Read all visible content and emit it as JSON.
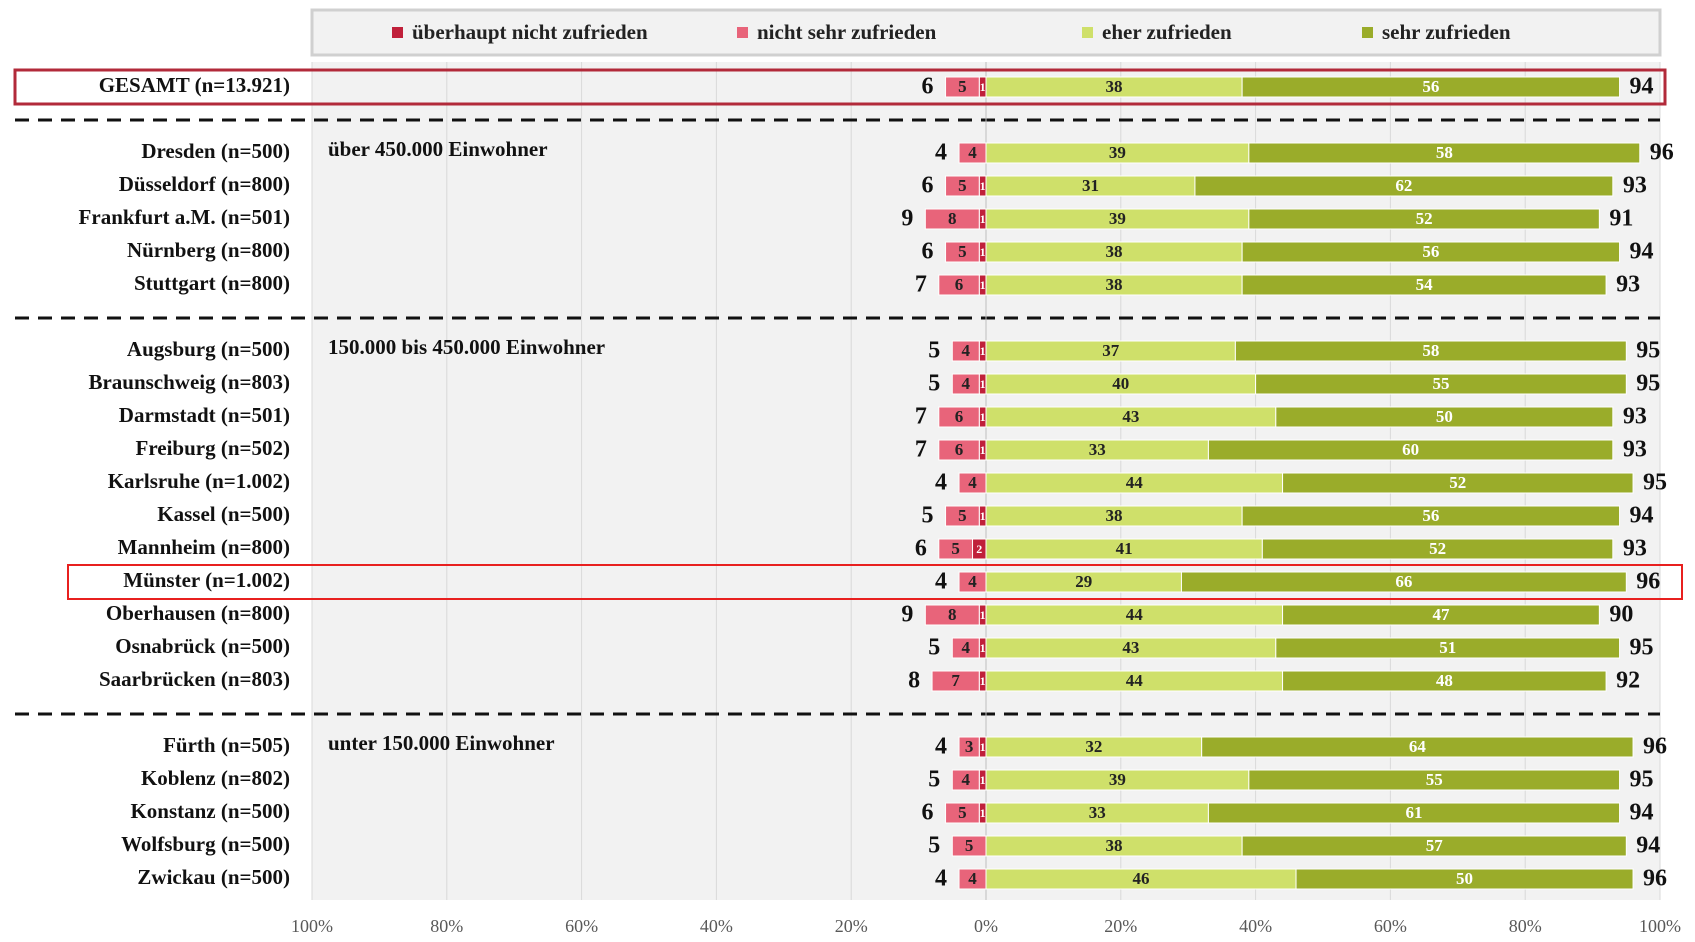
{
  "chart_data": {
    "type": "diverging_bar",
    "categories": [
      "GESAMT (n=13.921)",
      "Dresden (n=500)",
      "Düsseldorf (n=800)",
      "Frankfurt a.M. (n=501)",
      "Nürnberg (n=800)",
      "Stuttgart (n=800)",
      "Augsburg (n=500)",
      "Braunschweig (n=803)",
      "Darmstadt (n=501)",
      "Freiburg (n=502)",
      "Karlsruhe (n=1.002)",
      "Kassel (n=500)",
      "Mannheim (n=800)",
      "Münster (n=1.002)",
      "Oberhausen (n=800)",
      "Osnabrück (n=500)",
      "Saarbrücken (n=803)",
      "Fürth (n=505)",
      "Koblenz (n=802)",
      "Konstanz (n=500)",
      "Wolfsburg (n=500)",
      "Zwickau (n=500)"
    ],
    "series": [
      {
        "name": "überhaupt nicht zufrieden",
        "color": "#c0203a",
        "side": "negative",
        "values": [
          1,
          0,
          1,
          1,
          1,
          1,
          1,
          1,
          1,
          1,
          0,
          1,
          2,
          0,
          1,
          1,
          1,
          1,
          1,
          1,
          0,
          0
        ]
      },
      {
        "name": "nicht sehr zufrieden",
        "color": "#e8647a",
        "side": "negative",
        "values": [
          5,
          4,
          5,
          8,
          5,
          6,
          4,
          4,
          6,
          6,
          4,
          5,
          5,
          4,
          8,
          4,
          7,
          3,
          4,
          5,
          5,
          4
        ]
      },
      {
        "name": "eher zufrieden",
        "color": "#cfe06a",
        "side": "positive",
        "values": [
          38,
          39,
          31,
          39,
          38,
          38,
          37,
          40,
          43,
          33,
          44,
          38,
          41,
          29,
          44,
          43,
          44,
          32,
          39,
          33,
          38,
          46
        ]
      },
      {
        "name": "sehr zufrieden",
        "color": "#9aac2a",
        "side": "positive",
        "values": [
          56,
          58,
          62,
          52,
          56,
          54,
          58,
          55,
          50,
          60,
          52,
          56,
          52,
          66,
          47,
          51,
          48,
          64,
          55,
          61,
          57,
          50
        ]
      }
    ],
    "negative_totals": [
      6,
      4,
      6,
      9,
      6,
      7,
      5,
      5,
      7,
      7,
      4,
      5,
      6,
      4,
      9,
      5,
      8,
      4,
      5,
      6,
      5,
      4
    ],
    "positive_totals": [
      94,
      96,
      93,
      91,
      94,
      93,
      95,
      95,
      93,
      93,
      95,
      94,
      93,
      96,
      90,
      95,
      92,
      96,
      95,
      94,
      94,
      96
    ],
    "annotations": [
      {
        "text": "über 450.000 Einwohner",
        "category": "Dresden (n=500)"
      },
      {
        "text": "150.000 bis 450.000 Einwohner",
        "category": "Augsburg (n=500)"
      },
      {
        "text": "unter 150.000 Einwohner",
        "category": "Fürth (n=505)"
      }
    ],
    "highlight": [
      {
        "category": "GESAMT (n=13.921)",
        "color": "#b22a3a"
      },
      {
        "category": "Münster (n=1.002)",
        "color": "#e8201f"
      }
    ],
    "xlim": [
      -100,
      100
    ],
    "xticks": [
      {
        "value": -100,
        "label": "100%"
      },
      {
        "value": -80,
        "label": "80%"
      },
      {
        "value": -60,
        "label": "60%"
      },
      {
        "value": -40,
        "label": "40%"
      },
      {
        "value": -20,
        "label": "20%"
      },
      {
        "value": 0,
        "label": "0%"
      },
      {
        "value": 20,
        "label": "20%"
      },
      {
        "value": 40,
        "label": "40%"
      },
      {
        "value": 60,
        "label": "60%"
      },
      {
        "value": 80,
        "label": "80%"
      },
      {
        "value": 100,
        "label": "100%"
      }
    ],
    "grid": true,
    "legend": "top"
  }
}
